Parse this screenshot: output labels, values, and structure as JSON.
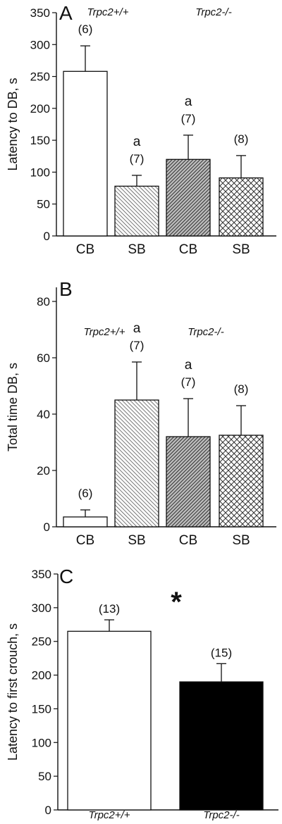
{
  "chart_data": [
    {
      "type": "bar",
      "panel_label": "A",
      "ylabel": "Latency to DB, s",
      "ylim": [
        0,
        350
      ],
      "yticks": [
        0,
        50,
        100,
        150,
        200,
        250,
        300,
        350
      ],
      "categories": [
        "CB",
        "SB",
        "CB",
        "SB"
      ],
      "values": [
        258,
        78,
        120,
        91
      ],
      "errors": [
        40,
        17,
        38,
        35
      ],
      "n_labels": [
        "(6)",
        "(7)",
        "(7)",
        "(8)"
      ],
      "significance": [
        "",
        "a",
        "a",
        ""
      ],
      "group_labels": [
        "Trpc2+/+",
        "Trpc2-/-"
      ],
      "bar_patterns": [
        "empty",
        "hatch-light",
        "hatch-dark",
        "crosshatch"
      ]
    },
    {
      "type": "bar",
      "panel_label": "B",
      "ylabel": "Total time DB, s",
      "ylim": [
        0,
        85
      ],
      "yticks": [
        0,
        20,
        40,
        60,
        80
      ],
      "categories": [
        "CB",
        "SB",
        "CB",
        "SB"
      ],
      "values": [
        3.5,
        45,
        32,
        32.5
      ],
      "errors": [
        2.5,
        13.5,
        13.5,
        10.5
      ],
      "n_labels": [
        "(6)",
        "(7)",
        "(7)",
        "(8)"
      ],
      "significance": [
        "",
        "a",
        "a",
        ""
      ],
      "group_labels": [
        "Trpc2+/+",
        "Trpc2-/-"
      ],
      "bar_patterns": [
        "empty",
        "hatch-light",
        "hatch-dark",
        "crosshatch"
      ]
    },
    {
      "type": "bar",
      "panel_label": "C",
      "ylabel": "Latency to first crouch, s",
      "ylim": [
        0,
        350
      ],
      "yticks": [
        0,
        50,
        100,
        150,
        200,
        250,
        300,
        350
      ],
      "categories": [
        "Trpc2+/+",
        "Trpc2-/-"
      ],
      "values": [
        265,
        190
      ],
      "errors": [
        17,
        27
      ],
      "n_labels": [
        "(13)",
        "(15)"
      ],
      "annotation": "*",
      "bar_patterns": [
        "empty",
        "solid"
      ]
    }
  ]
}
